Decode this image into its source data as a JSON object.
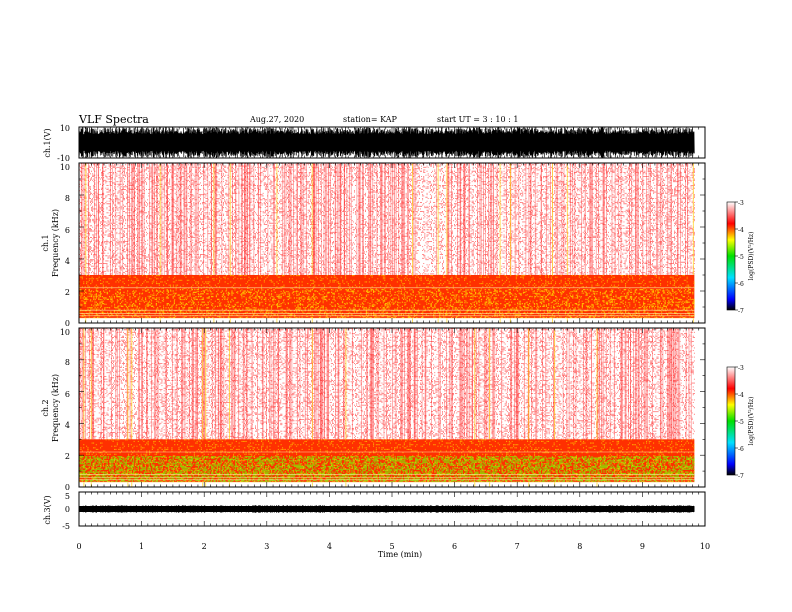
{
  "header": {
    "title": "VLF Spectra",
    "date": "Aug.27, 2020",
    "station": "station= KAP",
    "start": "start  UT =   3  : 10 : 1"
  },
  "chart_data": [
    {
      "type": "line",
      "name": "ch1-waveform",
      "ylabel": "ch.1(V)",
      "ylim": [
        -10,
        10
      ],
      "ytick_labels": [
        "10",
        "-10"
      ],
      "xlim": [
        0,
        10
      ],
      "x_end_min": 9.83
    },
    {
      "type": "heatmap",
      "name": "ch1-spectrogram",
      "ylabel_line1": "ch.1",
      "ylabel_line2": "Frequency (kHz)",
      "ylim": [
        0,
        10
      ],
      "ytick_labels": [
        "0",
        "2",
        "4",
        "6",
        "8",
        "10"
      ],
      "xlim": [
        0,
        10
      ],
      "x_end_min": 9.83,
      "band_khz": [
        0.3,
        3.0
      ],
      "colorbar": {
        "ticks": [
          "-3",
          "-4",
          "-5",
          "-6",
          "-7"
        ],
        "range": [
          -7,
          -3
        ],
        "label": "log(PSD)(V²/Hz)"
      }
    },
    {
      "type": "heatmap",
      "name": "ch2-spectrogram",
      "ylabel_line1": "ch.2",
      "ylabel_line2": "Frequency (kHz)",
      "ylim": [
        0,
        10
      ],
      "ytick_labels": [
        "0",
        "2",
        "4",
        "6",
        "8",
        "10"
      ],
      "xlim": [
        0,
        10
      ],
      "x_end_min": 9.83,
      "band_khz": [
        0.3,
        3.0
      ],
      "colorbar": {
        "ticks": [
          "-3",
          "-4",
          "-5",
          "-6",
          "-7"
        ],
        "range": [
          -7,
          -3
        ],
        "label": "log(PSD)(V²/Hz)"
      }
    },
    {
      "type": "line",
      "name": "ch3-waveform",
      "ylabel": "ch.3(V)",
      "ylim": [
        -5,
        5
      ],
      "ytick_labels": [
        "5",
        "0",
        "-5"
      ],
      "xlim": [
        0,
        10
      ],
      "x_end_min": 9.83,
      "mean_v": 0,
      "xlabel": "Time (min)",
      "xtick_labels": [
        "0",
        "1",
        "2",
        "3",
        "4",
        "5",
        "6",
        "7",
        "8",
        "9",
        "10"
      ]
    }
  ],
  "colors": {
    "band_high": "#ffd000",
    "band_mid": "#ff3000",
    "band_low": "#88e000",
    "noise": "#ff2a2a"
  }
}
